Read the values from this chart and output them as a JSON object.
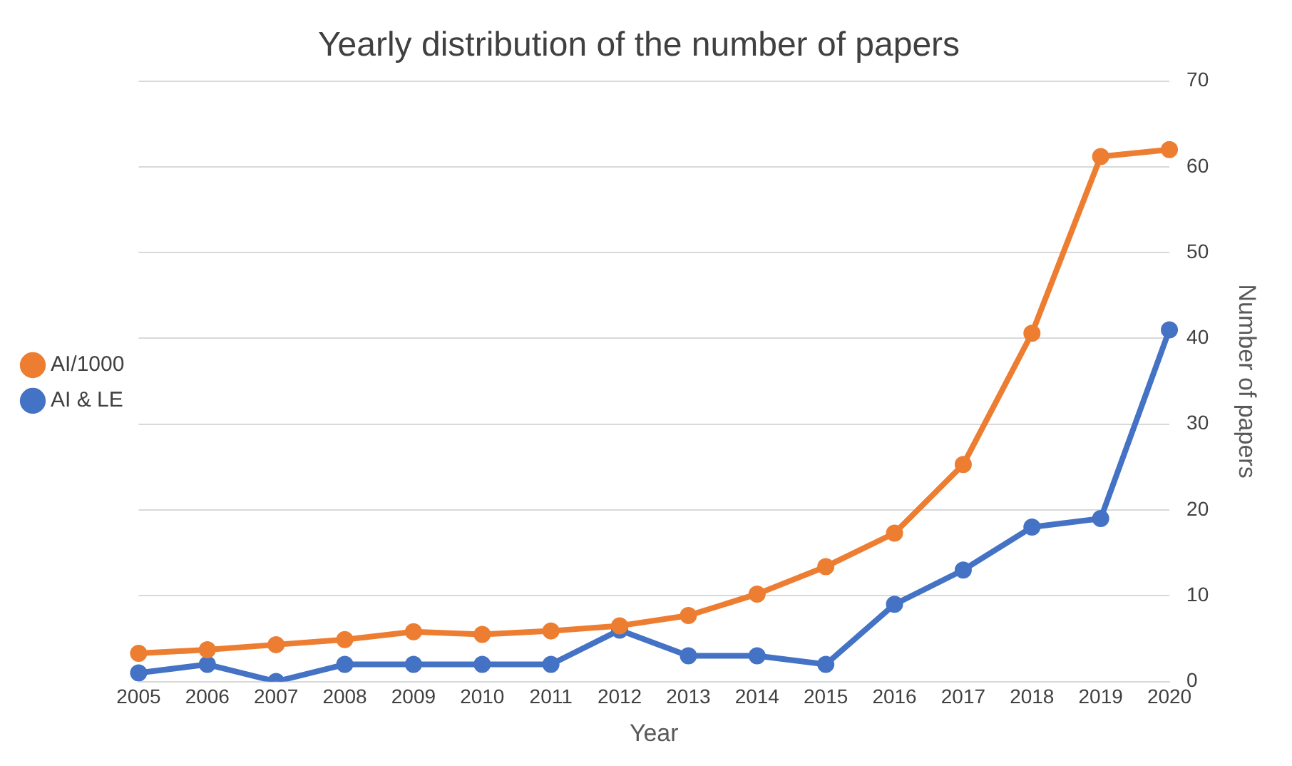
{
  "chart_data": {
    "type": "line",
    "title": "Yearly distribution of the number of papers",
    "xlabel": "Year",
    "ylabel": "Number of papers",
    "categories": [
      "2005",
      "2006",
      "2007",
      "2008",
      "2009",
      "2010",
      "2011",
      "2012",
      "2013",
      "2014",
      "2015",
      "2016",
      "2017",
      "2018",
      "2019",
      "2020"
    ],
    "series": [
      {
        "name": "AI & LE",
        "color": "#4472c4",
        "values": [
          1,
          2,
          0,
          2,
          2,
          2,
          2,
          6,
          3,
          3,
          2,
          9,
          13,
          18,
          19,
          41
        ]
      },
      {
        "name": "AI/1000",
        "color": "#ed7d31",
        "values": [
          3.3,
          3.7,
          4.3,
          4.9,
          5.8,
          5.5,
          5.9,
          6.5,
          7.7,
          10.2,
          13.4,
          17.3,
          25.3,
          40.6,
          61.2,
          62
        ]
      }
    ],
    "ylim": [
      0,
      70
    ],
    "yticks": [
      0,
      10,
      20,
      30,
      40,
      50,
      60,
      70
    ],
    "grid": "y",
    "legend": "left",
    "marker": "circle",
    "line_style": "solid"
  }
}
